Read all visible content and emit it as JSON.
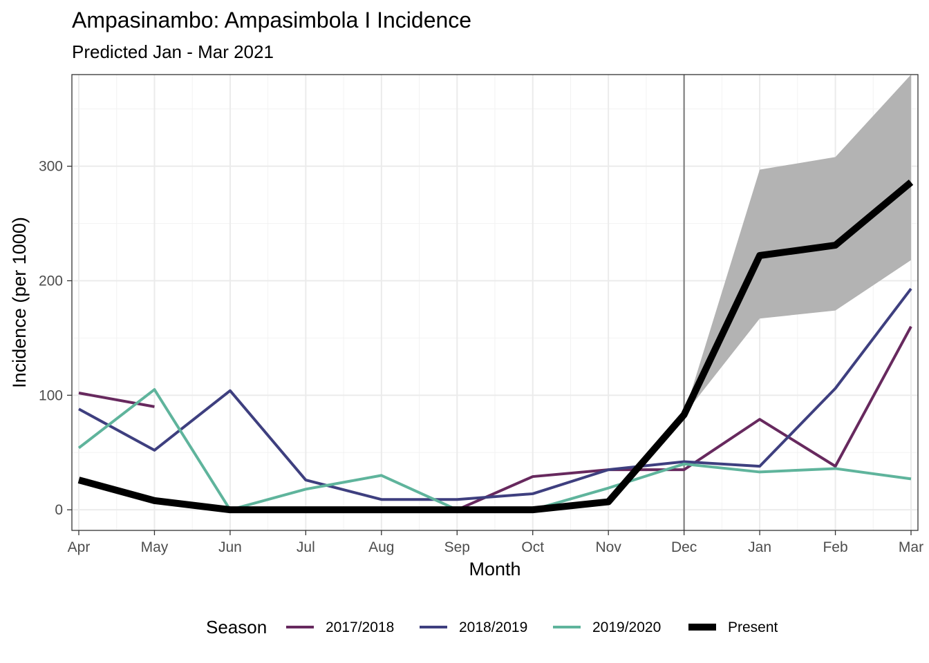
{
  "chart_data": {
    "type": "line",
    "title": "Ampasinambo: Ampasimbola I Incidence",
    "subtitle": "Predicted Jan - Mar 2021",
    "xlabel": "Month",
    "ylabel": "Incidence (per 1000)",
    "categories": [
      "Apr",
      "May",
      "Jun",
      "Jul",
      "Aug",
      "Sep",
      "Oct",
      "Nov",
      "Dec",
      "Jan",
      "Feb",
      "Mar"
    ],
    "ylim": [
      -18,
      380
    ],
    "yticks": [
      0,
      100,
      200,
      300
    ],
    "grid": true,
    "vline_at": "Dec",
    "legend": {
      "title": "Season",
      "position": "bottom"
    },
    "series": [
      {
        "name": "2017/2018",
        "color": "#67295e",
        "values": [
          102,
          90,
          null,
          null,
          null,
          0,
          29,
          35,
          35,
          79,
          38,
          160
        ]
      },
      {
        "name": "2018/2019",
        "color": "#3e3f7f",
        "values": [
          88,
          52,
          104,
          26,
          9,
          9,
          14,
          35,
          42,
          38,
          106,
          193
        ]
      },
      {
        "name": "2019/2020",
        "color": "#5fb49c",
        "values": [
          54,
          105,
          0,
          18,
          30,
          0,
          0,
          19,
          40,
          33,
          36,
          27
        ]
      },
      {
        "name": "Present",
        "color": "#000000",
        "values": [
          26,
          8,
          0,
          0,
          0,
          0,
          0,
          7,
          83,
          222,
          231,
          286
        ]
      }
    ],
    "prediction_band": {
      "color": "#b3b3b3",
      "x": [
        "Dec",
        "Jan",
        "Feb",
        "Mar"
      ],
      "lower": [
        83,
        167,
        174,
        218
      ],
      "upper": [
        83,
        297,
        308,
        380
      ]
    }
  }
}
